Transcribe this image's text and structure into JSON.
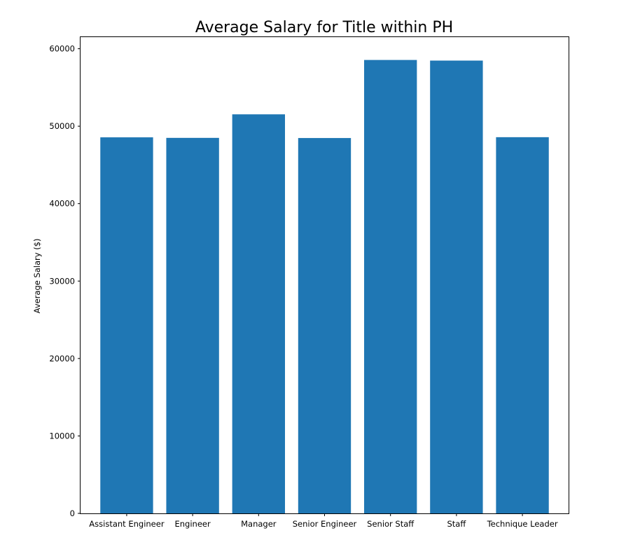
{
  "chart_data": {
    "type": "bar",
    "title": "Average Salary for Title within PH",
    "xlabel": "",
    "ylabel": "Average Salary ($)",
    "categories": [
      "Assistant Engineer",
      "Engineer",
      "Manager",
      "Senior Engineer",
      "Senior Staff",
      "Staff",
      "Technique Leader"
    ],
    "values": [
      48560,
      48490,
      51530,
      48470,
      58550,
      58470,
      48580
    ],
    "ylim": [
      0,
      61500
    ],
    "yticks": [
      0,
      10000,
      20000,
      30000,
      40000,
      50000,
      60000
    ],
    "ytick_labels": [
      "0",
      "10000",
      "20000",
      "30000",
      "40000",
      "50000",
      "60000"
    ],
    "bar_color": "#1f77b4",
    "grid": false,
    "legend": "none"
  }
}
